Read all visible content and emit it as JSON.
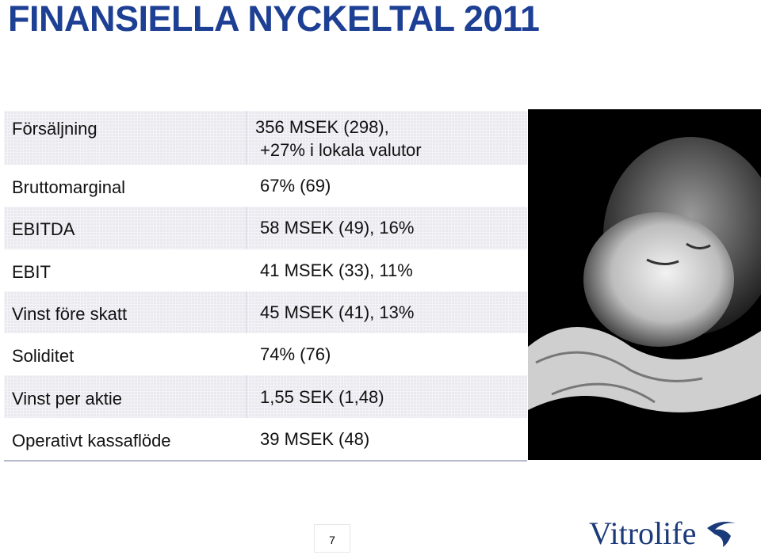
{
  "title": "FINANSIELLA NYCKELTAL 2011",
  "table": {
    "rows": [
      {
        "label": "Försäljning",
        "value": [
          "356 MSEK (298),",
          "+27% i lokala valutor"
        ]
      },
      {
        "label": "Bruttomarginal",
        "value": [
          "67% (69)"
        ]
      },
      {
        "label": "EBITDA",
        "value": [
          "58 MSEK (49), 16%"
        ]
      },
      {
        "label": "EBIT",
        "value": [
          "41 MSEK (33), 11%"
        ]
      },
      {
        "label": "Vinst före skatt",
        "value": [
          "45 MSEK (41), 13%"
        ]
      },
      {
        "label": "Soliditet",
        "value": [
          "74% (76)"
        ]
      },
      {
        "label": "Vinst per aktie",
        "value": [
          "1,55 SEK (1,48)"
        ]
      },
      {
        "label": "Operativt kassaflöde",
        "value": [
          "39 MSEK (48)"
        ]
      }
    ]
  },
  "page_number": "7",
  "logo": "Vitrolife"
}
